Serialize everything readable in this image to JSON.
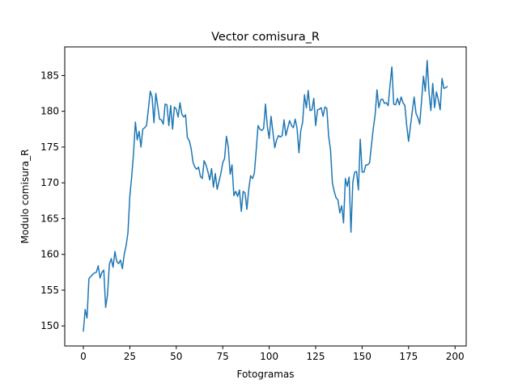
{
  "chart_data": {
    "type": "line",
    "title": "Vector comisura_R",
    "xlabel": "Fotogramas",
    "ylabel": "Modulo comisura_R",
    "xlim": [
      -10,
      206
    ],
    "ylim": [
      147.2,
      189.0
    ],
    "x_ticks": [
      0,
      25,
      50,
      75,
      100,
      125,
      150,
      175,
      200
    ],
    "y_ticks": [
      150,
      155,
      160,
      165,
      170,
      175,
      180,
      185
    ],
    "grid": false,
    "line_color": "#1f77b4",
    "series": [
      {
        "x": [
          0,
          1,
          2,
          3,
          4,
          5,
          6,
          7,
          8,
          9,
          10,
          11,
          12,
          13,
          14,
          15,
          16,
          17,
          18,
          19,
          20,
          21,
          22,
          23,
          24,
          25,
          26,
          27,
          28,
          29,
          30,
          31,
          32,
          33,
          34,
          35,
          36,
          37,
          38,
          39,
          40,
          41,
          42,
          43,
          44,
          45,
          46,
          47,
          48,
          49,
          50,
          51,
          52,
          53,
          54,
          55,
          56,
          57,
          58,
          59,
          60,
          61,
          62,
          63,
          64,
          65,
          66,
          67,
          68,
          69,
          70,
          71,
          72,
          73,
          74,
          75,
          76,
          77,
          78,
          79,
          80,
          81,
          82,
          83,
          84,
          85,
          86,
          87,
          88,
          89,
          90,
          91,
          92,
          93,
          94,
          95,
          96,
          97,
          98,
          99,
          100,
          101,
          102,
          103,
          104,
          105,
          106,
          107,
          108,
          109,
          110,
          111,
          112,
          113,
          114,
          115,
          116,
          117,
          118,
          119,
          120,
          121,
          122,
          123,
          124,
          125,
          126,
          127,
          128,
          129,
          130,
          131,
          132,
          133,
          134,
          135,
          136,
          137,
          138,
          139,
          140,
          141,
          142,
          143,
          144,
          145,
          146,
          147,
          148,
          149,
          150,
          151,
          152,
          153,
          154,
          155,
          156,
          157,
          158,
          159,
          160,
          161,
          162,
          163,
          164,
          165,
          166,
          167,
          168,
          169,
          170,
          171,
          172,
          173,
          174,
          175,
          176,
          177,
          178,
          179,
          180,
          181,
          182,
          183,
          184,
          185,
          186,
          187,
          188,
          189,
          190,
          191,
          192,
          193,
          194,
          195,
          196
        ],
        "values": [
          149.2,
          152.3,
          151.1,
          156.6,
          156.9,
          157.2,
          157.4,
          157.5,
          158.4,
          156.7,
          157.5,
          157.8,
          152.6,
          154.3,
          158.6,
          159.4,
          158.2,
          160.4,
          159.0,
          158.7,
          159.2,
          158.0,
          160.0,
          161.2,
          163.0,
          168.1,
          170.8,
          174.1,
          178.5,
          176.0,
          177.2,
          175.0,
          177.5,
          177.7,
          178.0,
          180.3,
          182.8,
          182.0,
          178.4,
          182.5,
          180.8,
          178.9,
          178.8,
          178.2,
          181.0,
          180.9,
          178.0,
          180.8,
          177.5,
          180.6,
          180.3,
          179.2,
          181.2,
          179.6,
          179.2,
          179.5,
          176.3,
          175.9,
          174.8,
          172.9,
          172.2,
          171.9,
          172.2,
          170.9,
          170.6,
          173.1,
          172.5,
          171.6,
          170.4,
          172.0,
          169.4,
          171.3,
          169.1,
          170.2,
          171.3,
          172.8,
          173.4,
          176.5,
          175.0,
          171.2,
          172.5,
          168.2,
          168.8,
          168.1,
          169.0,
          166.0,
          168.8,
          168.6,
          166.3,
          169.1,
          171.0,
          170.6,
          171.3,
          174.5,
          178.0,
          177.5,
          177.3,
          177.6,
          181.0,
          177.9,
          176.2,
          179.3,
          177.1,
          174.9,
          176.0,
          176.6,
          176.4,
          176.6,
          178.8,
          176.6,
          177.7,
          178.7,
          178.0,
          177.7,
          178.9,
          177.6,
          174.2,
          177.3,
          178.5,
          182.3,
          180.5,
          182.9,
          180.1,
          180.2,
          181.8,
          178.0,
          180.2,
          180.3,
          180.5,
          179.3,
          180.6,
          180.4,
          176.5,
          174.6,
          170.0,
          168.8,
          167.9,
          167.6,
          165.8,
          166.8,
          164.4,
          170.6,
          169.5,
          170.8,
          163.1,
          170.1,
          171.5,
          171.6,
          169.0,
          176.1,
          171.5,
          171.5,
          172.5,
          172.5,
          172.8,
          175.2,
          177.6,
          179.5,
          183.0,
          180.5,
          181.6,
          181.7,
          181.1,
          181.2,
          180.8,
          183.6,
          186.2,
          181.0,
          180.9,
          181.8,
          180.9,
          182.0,
          181.2,
          180.8,
          178.0,
          175.8,
          177.9,
          180.0,
          182.0,
          179.7,
          179.1,
          178.2,
          181.5,
          184.9,
          182.8,
          187.1,
          182.6,
          180.1,
          183.9,
          180.5,
          182.7,
          181.6,
          180.2,
          184.6,
          183.2,
          183.3,
          183.5
        ]
      }
    ]
  }
}
